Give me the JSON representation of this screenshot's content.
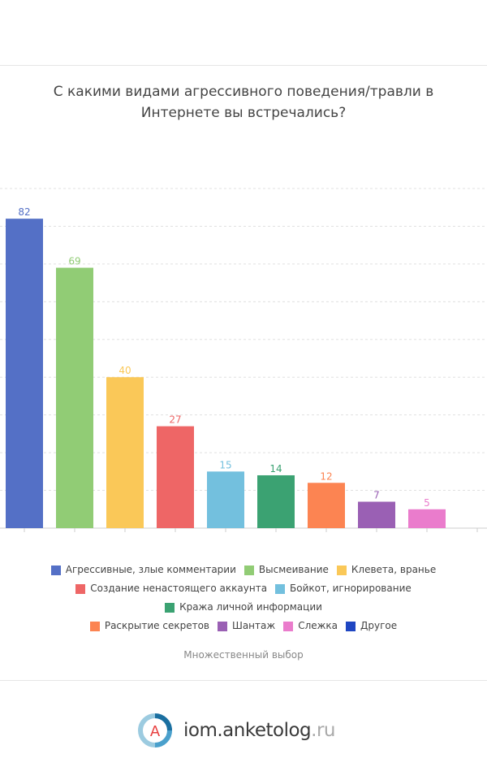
{
  "chart_data": {
    "type": "bar",
    "title": "С какими видами агрессивного поведения/травли в Интернете вы встречались?",
    "categories": [
      "Агрессивные, злые комментарии",
      "Высмеивание",
      "Клевета, вранье",
      "Создание ненастоящего аккаунта",
      "Бойкот, игнорирование",
      "Кража личной информации",
      "Раскрытие секретов",
      "Шантаж",
      "Слежка",
      "Другое"
    ],
    "values": [
      82,
      69,
      40,
      27,
      15,
      14,
      12,
      7,
      5,
      null
    ],
    "colors": [
      "#5470c6",
      "#91cc75",
      "#fac858",
      "#ee6666",
      "#73c0de",
      "#3ba272",
      "#fc8452",
      "#9a60b4",
      "#ea7ccc",
      "#1f46c2"
    ],
    "ylim": [
      0,
      90
    ],
    "grid": true,
    "legend": "bottom",
    "note": "Множественный выбор"
  },
  "logo": {
    "name": "iom.anketolog",
    "tld": ".ru",
    "letter": "A"
  }
}
